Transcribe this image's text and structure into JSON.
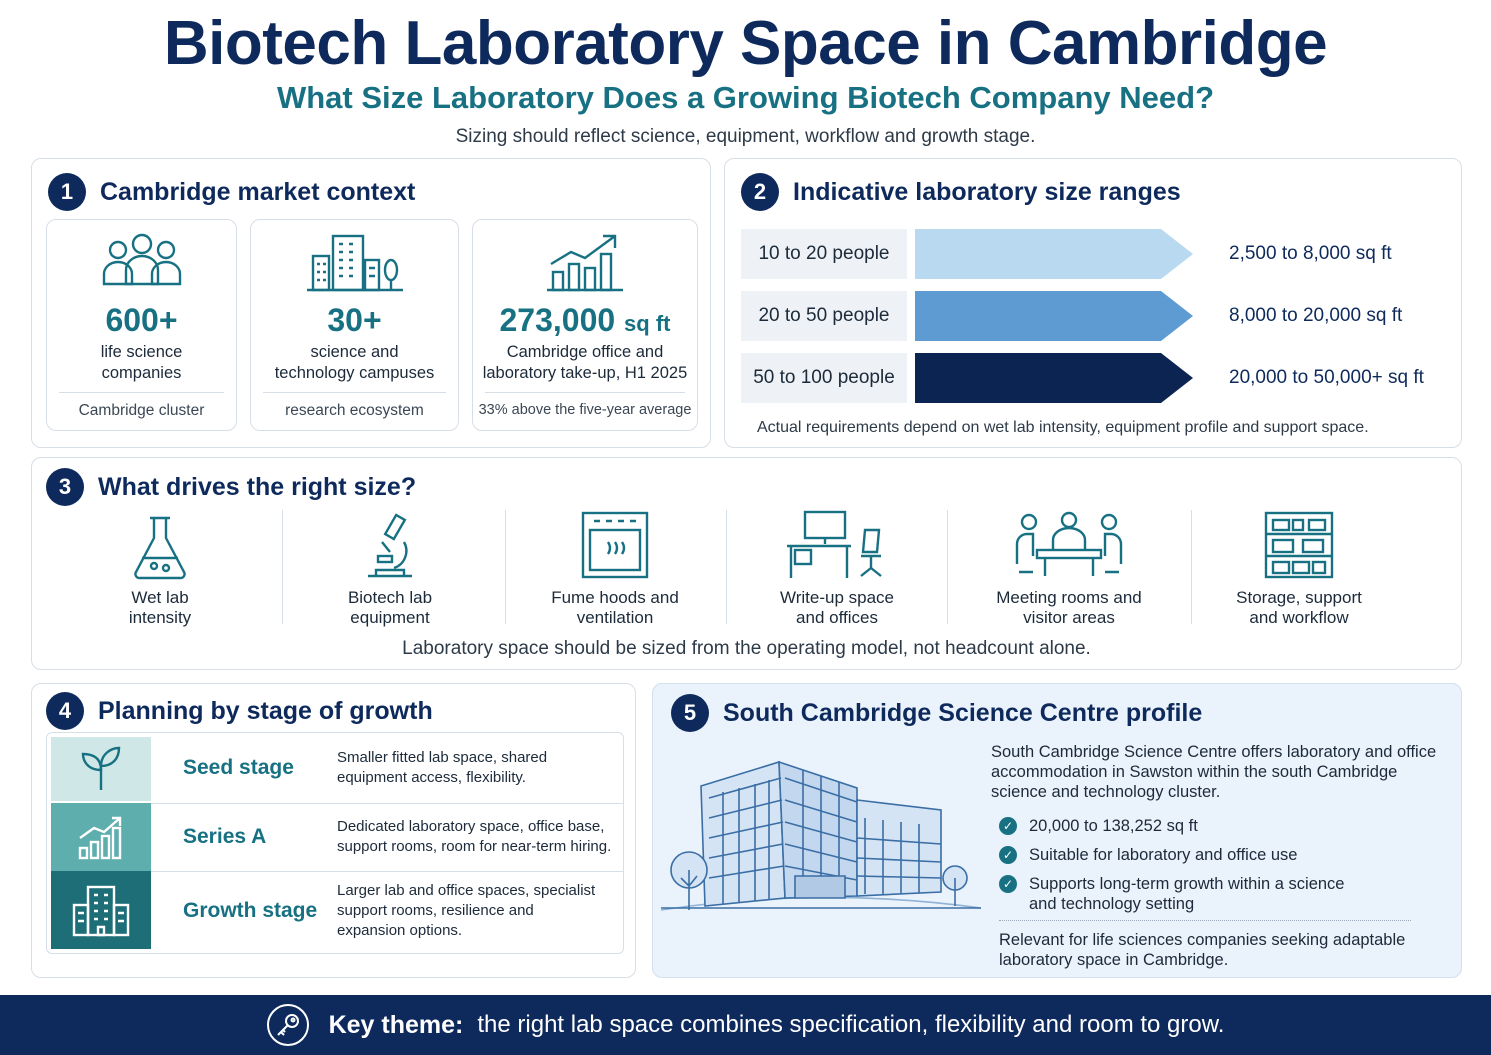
{
  "header": {
    "title": "Biotech Laboratory Space in Cambridge",
    "subtitle": "What Size Laboratory Does a Growing Biotech Company Need?",
    "tagline": "Sizing should reflect science, equipment, workflow and growth stage."
  },
  "colors": {
    "navy": "#0e2a5c",
    "teal": "#177183",
    "light_blue": "#b9d9f1",
    "mid_blue": "#5f9bd3",
    "dark_navy": "#0c2452"
  },
  "section1": {
    "number": "1",
    "title": "Cambridge market context",
    "cards": [
      {
        "icon": "people-group-icon",
        "value": "600+",
        "unit": "",
        "desc_line1": "life science",
        "desc_line2": "companies",
        "footer": "Cambridge cluster"
      },
      {
        "icon": "campus-buildings-icon",
        "value": "30+",
        "unit": "",
        "desc_line1": "science and",
        "desc_line2": "technology campuses",
        "footer": "research ecosystem"
      },
      {
        "icon": "growth-chart-icon",
        "value": "273,000",
        "unit": "sq ft",
        "desc_line1": "Cambridge office and",
        "desc_line2": "laboratory take-up, H1 2025",
        "footer": "33% above the five-year average"
      }
    ]
  },
  "section2": {
    "number": "2",
    "title": "Indicative laboratory size ranges",
    "rows": [
      {
        "people": "10 to 20 people",
        "size": "2,500 to 8,000 sq ft",
        "level": 1
      },
      {
        "people": "20 to 50 people",
        "size": "8,000 to 20,000 sq ft",
        "level": 2
      },
      {
        "people": "50 to 100 people",
        "size": "20,000 to 50,000+ sq ft",
        "level": 3
      }
    ],
    "note": "Actual requirements depend on wet lab intensity, equipment profile and support space."
  },
  "section3": {
    "number": "3",
    "title": "What drives the right size?",
    "drivers": [
      {
        "icon": "flask-icon",
        "line1": "Wet lab",
        "line2": "intensity"
      },
      {
        "icon": "microscope-icon",
        "line1": "Biotech lab",
        "line2": "equipment"
      },
      {
        "icon": "fume-hood-icon",
        "line1": "Fume hoods and",
        "line2": "ventilation"
      },
      {
        "icon": "desk-chair-icon",
        "line1": "Write-up space",
        "line2": "and offices"
      },
      {
        "icon": "meeting-table-icon",
        "line1": "Meeting rooms and",
        "line2": "visitor areas"
      },
      {
        "icon": "storage-shelves-icon",
        "line1": "Storage, support",
        "line2": "and workflow"
      }
    ],
    "note": "Laboratory space should be sized from the operating model, not headcount alone."
  },
  "section4": {
    "number": "4",
    "title": "Planning by stage of growth",
    "stages": [
      {
        "icon": "seedling-icon",
        "name": "Seed stage",
        "desc_line1": "Smaller fitted lab space, shared",
        "desc_line2": "equipment access, flexibility.",
        "desc_line3": ""
      },
      {
        "icon": "bar-growth-icon",
        "name": "Series A",
        "desc_line1": "Dedicated laboratory space, office base,",
        "desc_line2": "support rooms, room for near-term hiring.",
        "desc_line3": ""
      },
      {
        "icon": "office-building-icon",
        "name": "Growth stage",
        "desc_line1": "Larger lab and office spaces, specialist",
        "desc_line2": "support rooms, resilience and",
        "desc_line3": "expansion options."
      }
    ]
  },
  "section5": {
    "number": "5",
    "title": "South Cambridge Science Centre profile",
    "intro_line1": "South Cambridge Science Centre offers laboratory and office",
    "intro_line2": "accommodation in Sawston within the south Cambridge",
    "intro_line3": "science and technology cluster.",
    "checks": [
      {
        "line1": "20,000 to 138,252 sq ft",
        "line2": ""
      },
      {
        "line1": "Suitable for laboratory and office use",
        "line2": ""
      },
      {
        "line1": "Supports long-term growth within a science",
        "line2": "and technology setting"
      }
    ],
    "footer_line1": "Relevant for life sciences companies seeking adaptable",
    "footer_line2": "laboratory space in Cambridge."
  },
  "footer": {
    "icon": "key-icon",
    "label": "Key theme:",
    "text": "the right lab space combines specification, flexibility and room to grow."
  }
}
